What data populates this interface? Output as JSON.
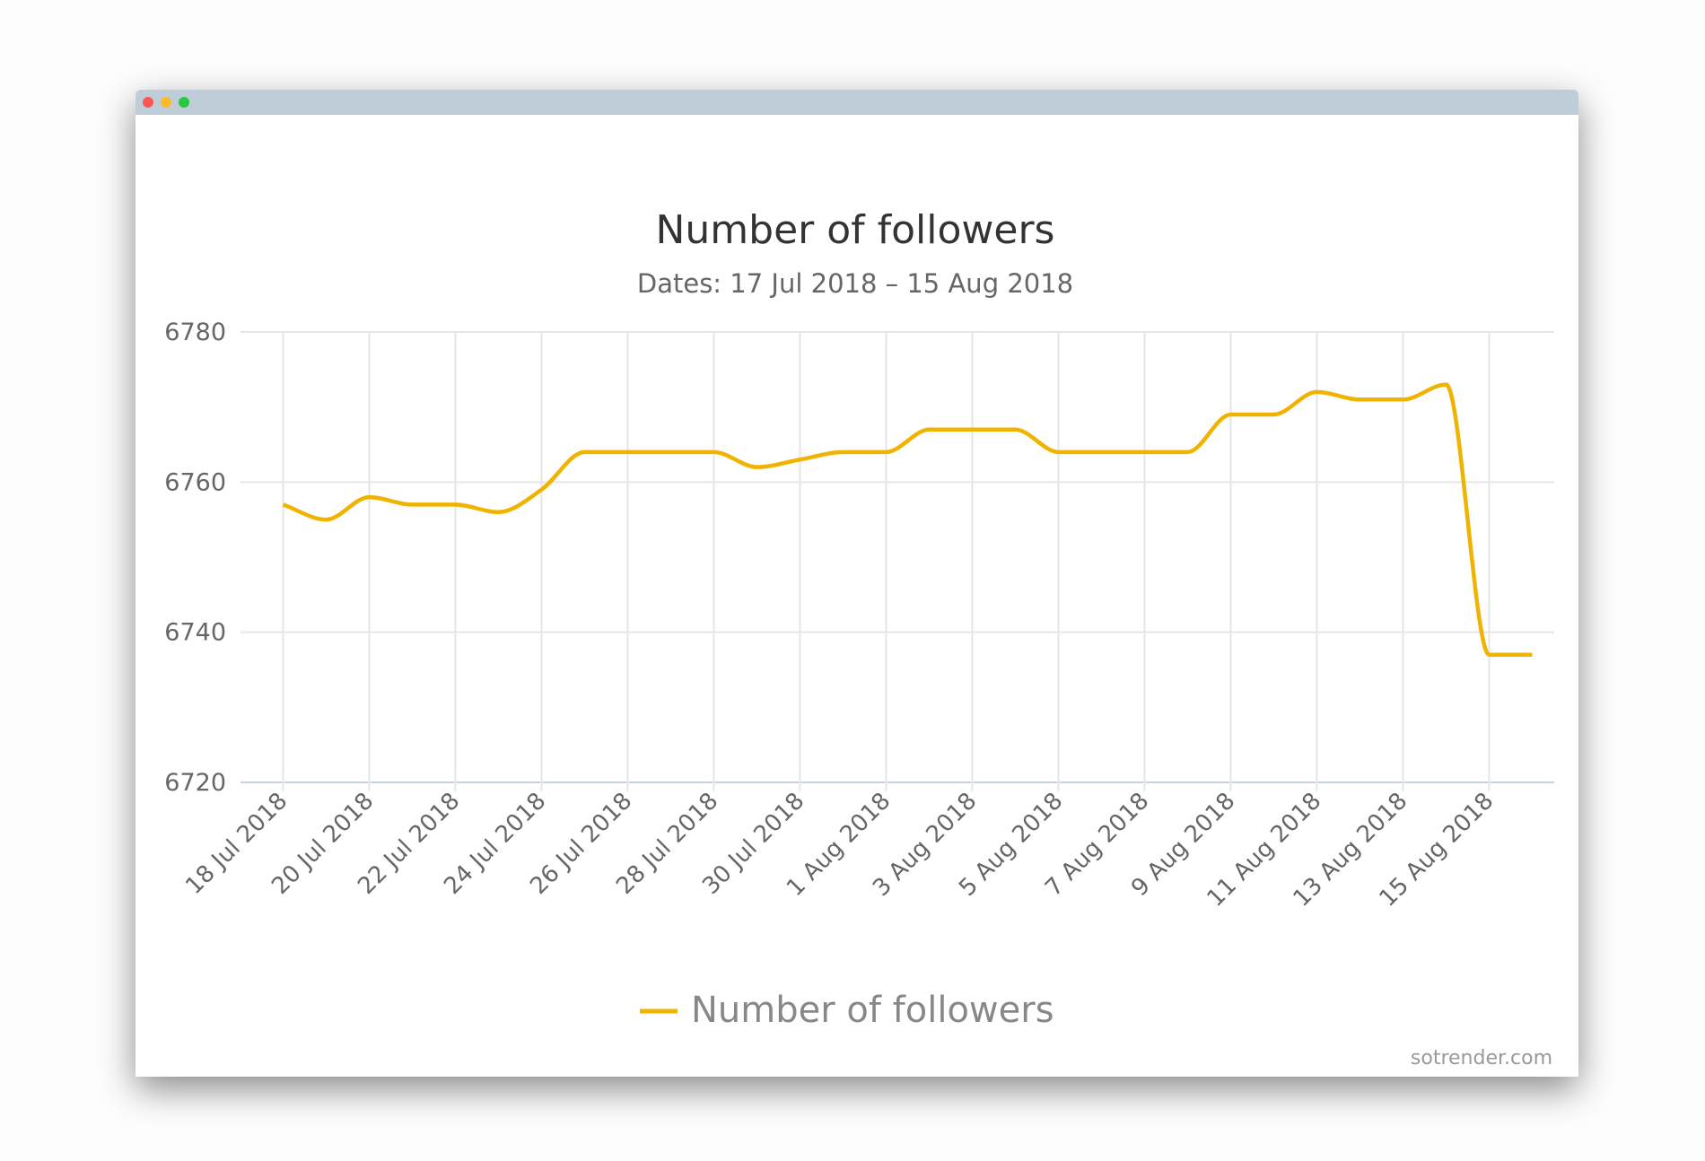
{
  "window": {
    "controls": {
      "close_color": "#fd5553",
      "minimize_color": "#fdbb2c",
      "maximize_color": "#28c840"
    }
  },
  "chart_data": {
    "type": "line",
    "title": "Number of followers",
    "subtitle": "Dates: 17 Jul 2018 – 15 Aug 2018",
    "xlabel": "",
    "ylabel": "",
    "ylim": [
      6720,
      6780
    ],
    "y_ticks": [
      "6720",
      "6740",
      "6760",
      "6780"
    ],
    "x_ticks": [
      "18 Jul 2018",
      "20 Jul 2018",
      "22 Jul 2018",
      "24 Jul 2018",
      "26 Jul 2018",
      "28 Jul 2018",
      "30 Jul 2018",
      "1 Aug 2018",
      "3 Aug 2018",
      "5 Aug 2018",
      "7 Aug 2018",
      "9 Aug 2018",
      "11 Aug 2018",
      "13 Aug 2018",
      "15 Aug 2018"
    ],
    "grid": true,
    "legend_position": "bottom-center",
    "series": [
      {
        "name": "Number of followers",
        "color": "#f0b400",
        "x": [
          "18 Jul",
          "19 Jul",
          "20 Jul",
          "21 Jul",
          "22 Jul",
          "23 Jul",
          "24 Jul",
          "25 Jul",
          "26 Jul",
          "27 Jul",
          "28 Jul",
          "29 Jul",
          "30 Jul",
          "31 Jul",
          "1 Aug",
          "2 Aug",
          "3 Aug",
          "4 Aug",
          "5 Aug",
          "6 Aug",
          "7 Aug",
          "8 Aug",
          "9 Aug",
          "10 Aug",
          "11 Aug",
          "12 Aug",
          "13 Aug",
          "14 Aug",
          "15 Aug",
          "16 Aug"
        ],
        "values": [
          6757,
          6755,
          6758,
          6757,
          6757,
          6756,
          6759,
          6764,
          6764,
          6764,
          6764,
          6762,
          6763,
          6764,
          6764,
          6767,
          6767,
          6767,
          6764,
          6764,
          6764,
          6764,
          6769,
          6769,
          6772,
          6771,
          6771,
          6773,
          6737,
          6737
        ]
      }
    ]
  },
  "credit": "sotrender.com"
}
